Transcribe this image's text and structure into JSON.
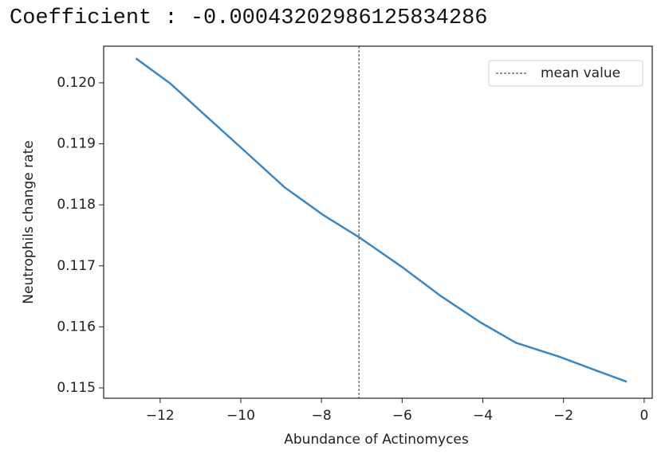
{
  "output": "Coefficient : -0.00043202986125834286",
  "chart_data": {
    "type": "line",
    "xlabel": "Abundance of Actinomyces",
    "ylabel": "Neutrophils change rate",
    "x": [
      -12.6,
      -11.75,
      -10.87,
      -9.9,
      -8.92,
      -7.95,
      -7.07,
      -6.0,
      -5.03,
      -4.05,
      -3.18,
      -2.1,
      -1.13,
      -0.43
    ],
    "series": [
      {
        "color": "#3a87c4",
        "values": [
          0.1204,
          0.11999,
          0.11946,
          0.11888,
          0.11829,
          0.11783,
          0.11747,
          0.11698,
          0.1165,
          0.11607,
          0.11574,
          0.11551,
          0.11527,
          0.1151
        ]
      }
    ],
    "mean": {
      "name": "mean value",
      "value": -7.07,
      "color": "#555555"
    },
    "xlim": [
      -13.4,
      0.2
    ],
    "ylim": [
      0.11483,
      0.1206
    ],
    "xticks": [
      {
        "value": -12,
        "label": "−12"
      },
      {
        "value": -10,
        "label": "−10"
      },
      {
        "value": -8,
        "label": "−8"
      },
      {
        "value": -6,
        "label": "−6"
      },
      {
        "value": -4,
        "label": "−4"
      },
      {
        "value": -2,
        "label": "−2"
      },
      0
    ],
    "yticks": [
      {
        "value": 0.115,
        "label": "0.115"
      },
      0.116,
      0.117,
      0.118,
      0.119,
      {
        "value": 0.12,
        "label": "0.120"
      }
    ],
    "legend": "upper right"
  }
}
